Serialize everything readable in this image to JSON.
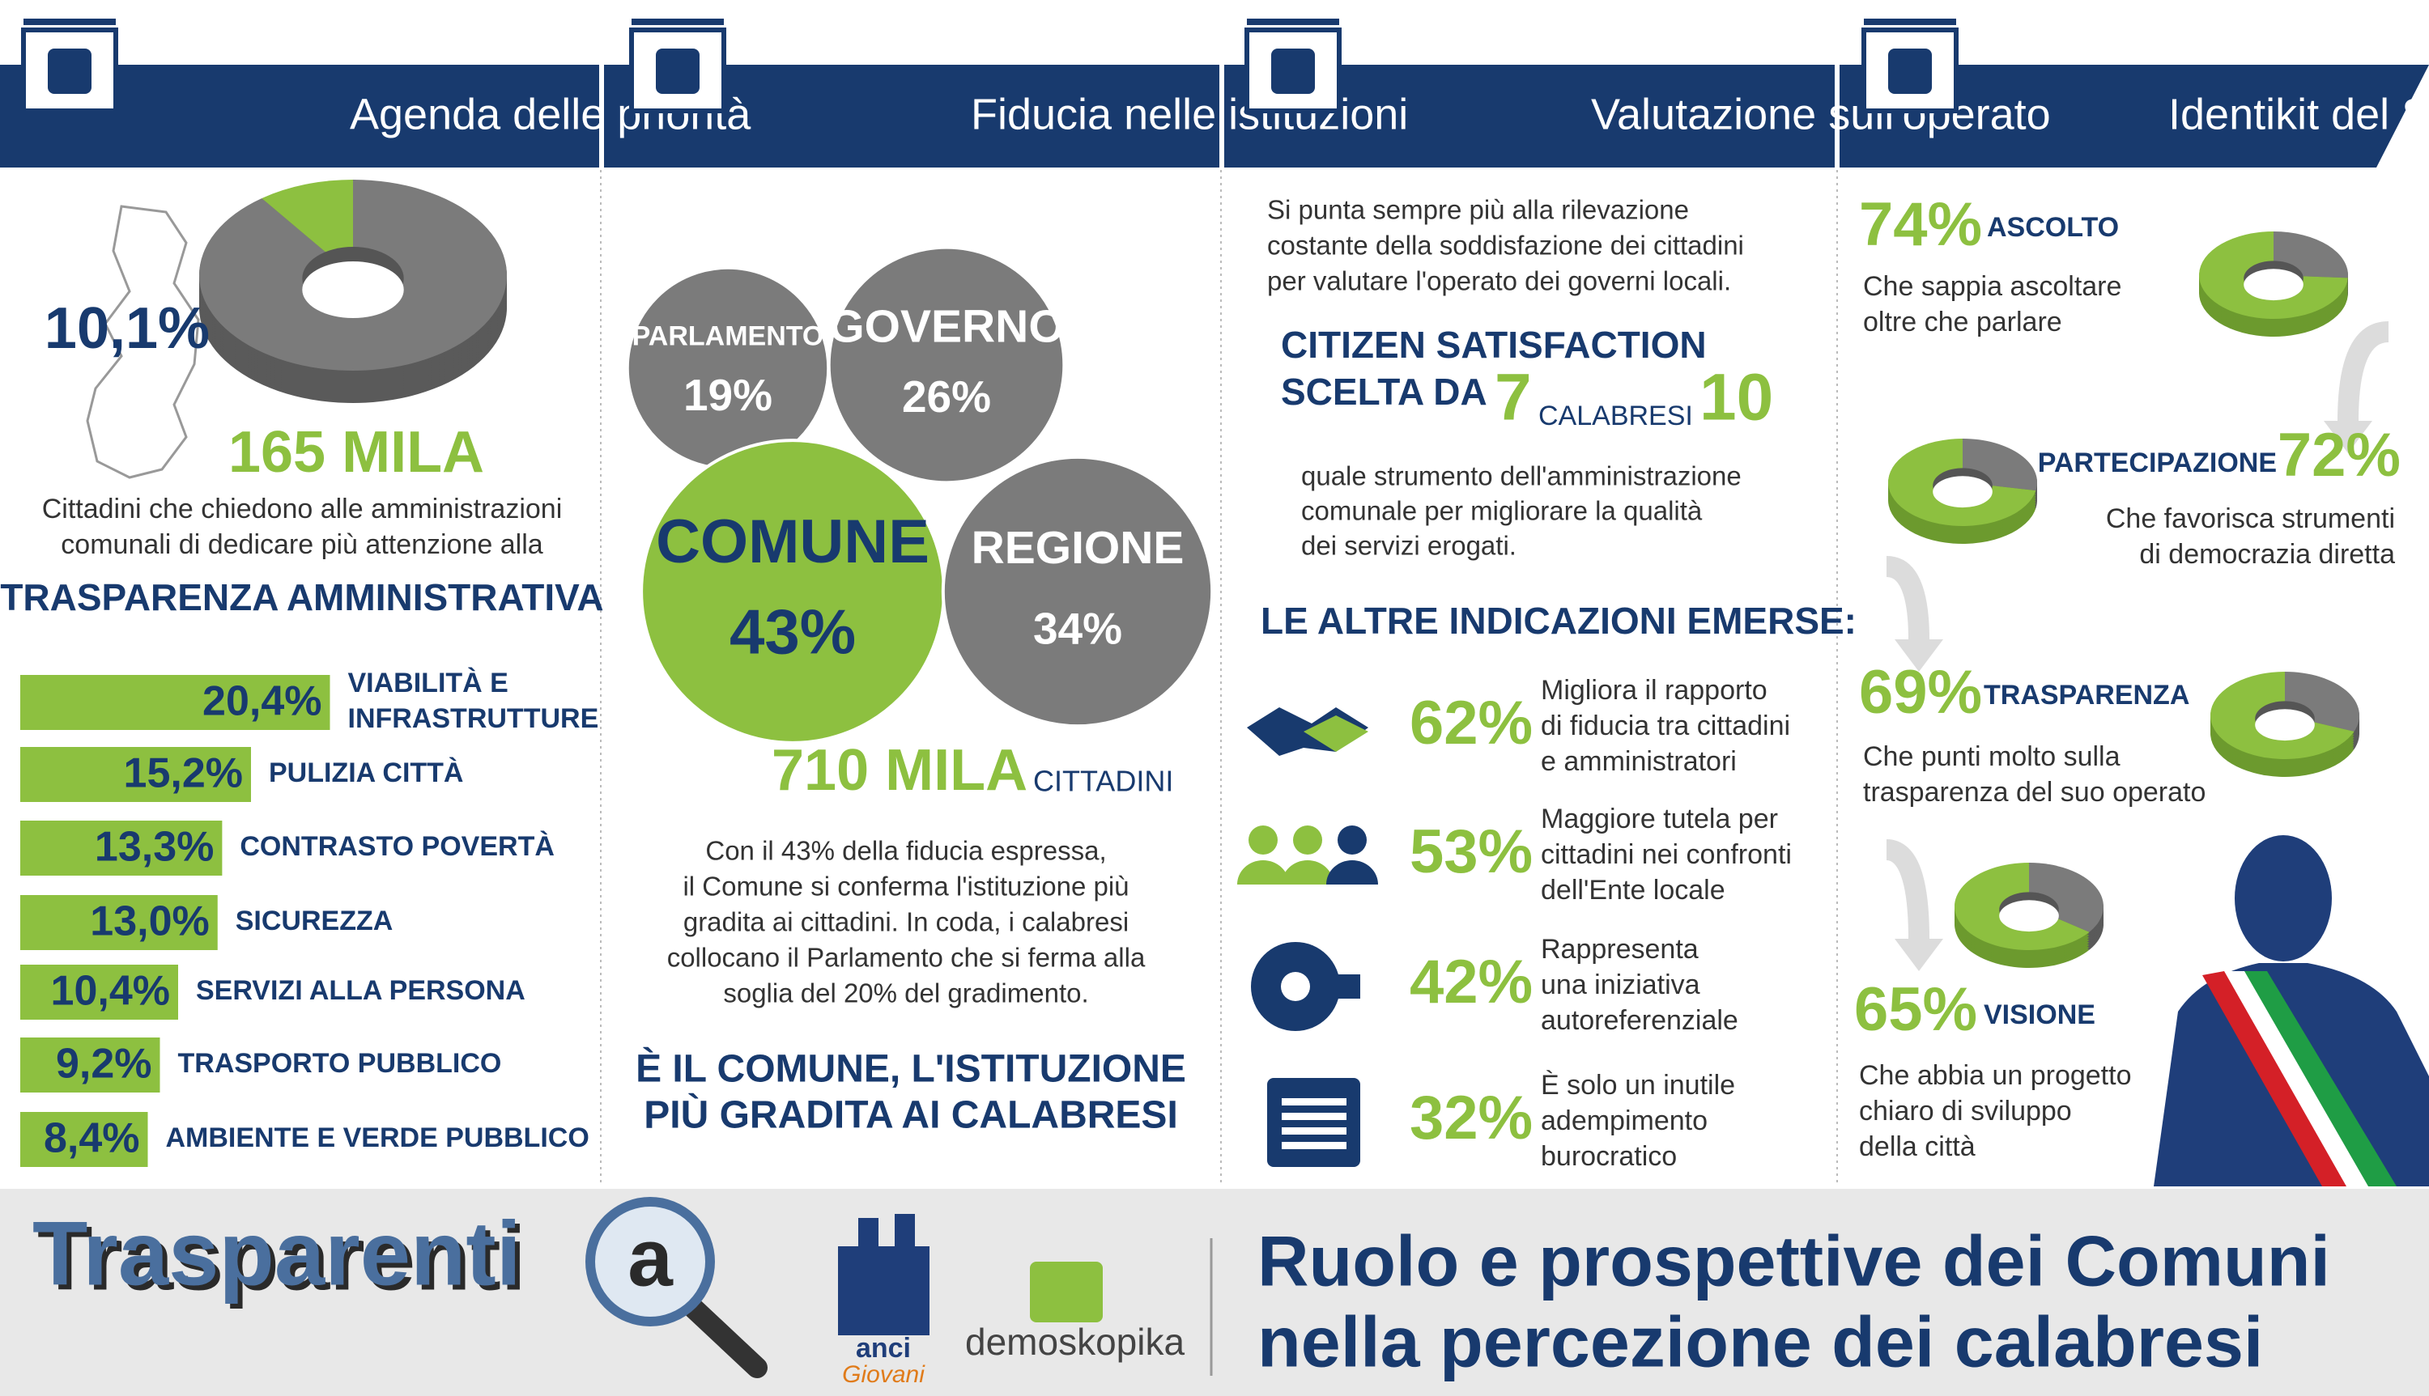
{
  "header": {
    "sections": [
      "Agenda delle priorità",
      "Fiducia nelle istituzioni",
      "Valutazione sull'operato",
      "Identikit del Sindaco"
    ]
  },
  "agenda": {
    "share": {
      "value": 10.1,
      "label": "10,1%"
    },
    "count": "165 MILA",
    "description": [
      "Cittadini che chiedono alle amministrazioni",
      "comunali di dedicare più attenzione alla"
    ],
    "highlight": "TRASPARENZA AMMINISTRATIVA",
    "items": [
      {
        "value": 20.4,
        "label": "20,4%",
        "name": [
          "VIABILITÀ E",
          "INFRASTRUTTURE"
        ]
      },
      {
        "value": 15.2,
        "label": "15,2%",
        "name": [
          "PULIZIA CITTÀ"
        ]
      },
      {
        "value": 13.3,
        "label": "13,3%",
        "name": [
          "CONTRASTO POVERTÀ"
        ]
      },
      {
        "value": 13.0,
        "label": "13,0%",
        "name": [
          "SICUREZZA"
        ]
      },
      {
        "value": 10.4,
        "label": "10,4%",
        "name": [
          "SERVIZI ALLA PERSONA"
        ]
      },
      {
        "value": 9.2,
        "label": "9,2%",
        "name": [
          "TRASPORTO PUBBLICO"
        ]
      },
      {
        "value": 8.4,
        "label": "8,4%",
        "name": [
          "AMBIENTE E VERDE PUBBLICO"
        ]
      }
    ]
  },
  "fiducia": {
    "bubbles": [
      {
        "name": "PARLAMENTO",
        "value": 19,
        "label": "19%"
      },
      {
        "name": "GOVERNO",
        "value": 26,
        "label": "26%"
      },
      {
        "name": "COMUNE",
        "value": 43,
        "label": "43%",
        "highlight": true
      },
      {
        "name": "REGIONE",
        "value": 34,
        "label": "34%"
      }
    ],
    "count": "710 MILA",
    "count_unit": "CITTADINI",
    "text": [
      "Con il 43% della fiducia espressa,",
      "il Comune si conferma l'istituzione più",
      "gradita ai cittadini. In coda, i calabresi",
      "collocano il Parlamento che  si ferma alla",
      "soglia del 20% del gradimento."
    ],
    "conclusion": [
      "È IL COMUNE, L'ISTITUZIONE",
      "PIÙ GRADITA AI CALABRESI"
    ]
  },
  "valutazione": {
    "intro": [
      "Si punta sempre più alla rilevazione",
      "costante della soddisfazione dei cittadini",
      "per valutare l'operato dei governi locali."
    ],
    "headline": [
      "CITIZEN SATISFACTION",
      "SCELTA DA"
    ],
    "numerator": 7,
    "unit": "CALABRESI",
    "denominator": 10,
    "description": [
      "quale strumento dell'amministrazione",
      "comunale per migliorare la qualità",
      "dei servizi erogati."
    ],
    "subtitle": "LE ALTRE INDICAZIONI EMERSE:",
    "items": [
      {
        "value": 62,
        "label": "62%",
        "text": [
          "Migliora il rapporto",
          "di fiducia tra cittadini",
          "e amministratori"
        ]
      },
      {
        "value": 53,
        "label": "53%",
        "text": [
          "Maggiore tutela per",
          "cittadini nei confronti",
          "dell'Ente locale"
        ]
      },
      {
        "value": 42,
        "label": "42%",
        "text": [
          "Rappresenta",
          "una iniziativa",
          "autoreferenziale"
        ]
      },
      {
        "value": 32,
        "label": "32%",
        "text": [
          "È solo un inutile",
          "adempimento",
          "burocratico"
        ]
      }
    ]
  },
  "sindaco": {
    "traits": [
      {
        "value": 74,
        "label": "74%",
        "name": "ASCOLTO",
        "text": [
          "Che sappia ascoltare",
          "oltre che parlare"
        ]
      },
      {
        "value": 72,
        "label": "72%",
        "name": "PARTECIPAZIONE",
        "text": [
          "Che favorisca strumenti",
          "di democrazia diretta"
        ]
      },
      {
        "value": 69,
        "label": "69%",
        "name": "TRASPARENZA",
        "text": [
          "Che punti molto sulla",
          "trasparenza del suo operato"
        ]
      },
      {
        "value": 65,
        "label": "65%",
        "name": "VISIONE",
        "text": [
          "Che abbia un progetto",
          "chiaro di sviluppo",
          "della città"
        ]
      }
    ]
  },
  "footer": {
    "logo": "Trasparenti",
    "logo_letter": "a",
    "partner_1": "anci",
    "partner_1_sub": "Giovani",
    "partner_2": "demoskopika",
    "title": [
      "Ruolo e prospettive dei Comuni",
      "nella percezione dei calabresi"
    ]
  }
}
